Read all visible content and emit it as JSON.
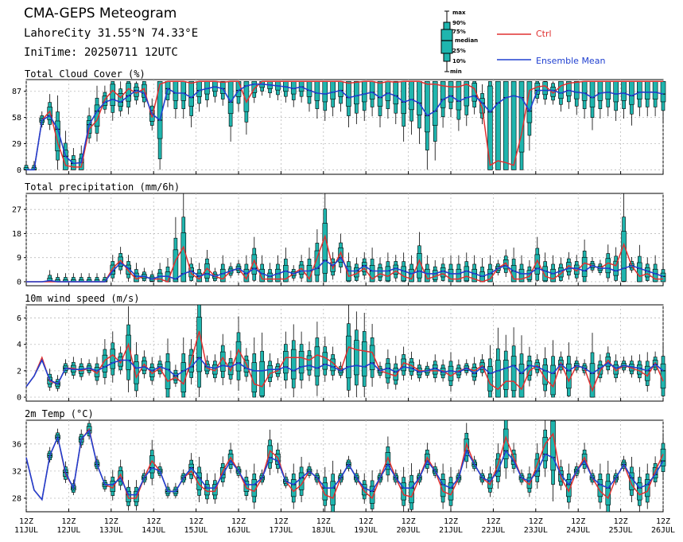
{
  "header": {
    "title": "CMA-GEPS Meteogram",
    "location": "LahoreCity 31.55°N 74.33°E",
    "init_time": "IniTime: 20250711 12UTC"
  },
  "legend": {
    "box_labels": [
      "max",
      "90%",
      "75%",
      "median",
      "25%",
      "10%",
      "min"
    ],
    "ctrl_label": "Ctrl",
    "mean_label": "Ensemble Mean",
    "ctrl_color": "#e03030",
    "mean_color": "#2040d0",
    "box_color": "#1fb5ae"
  },
  "x_axis": {
    "ticks": [
      {
        "top": "12Z",
        "bottom": "11JUL"
      },
      {
        "top": "12Z",
        "bottom": "12JUL"
      },
      {
        "top": "12Z",
        "bottom": "13JUL"
      },
      {
        "top": "12Z",
        "bottom": "14JUL"
      },
      {
        "top": "12Z",
        "bottom": "15JUL"
      },
      {
        "top": "12Z",
        "bottom": "16JUL"
      },
      {
        "top": "12Z",
        "bottom": "17JUL"
      },
      {
        "top": "12Z",
        "bottom": "18JUL"
      },
      {
        "top": "12Z",
        "bottom": "19JUL"
      },
      {
        "top": "12Z",
        "bottom": "20JUL"
      },
      {
        "top": "12Z",
        "bottom": "21JUL"
      },
      {
        "top": "12Z",
        "bottom": "22JUL"
      },
      {
        "top": "12Z",
        "bottom": "23JUL"
      },
      {
        "top": "12Z",
        "bottom": "24JUL"
      },
      {
        "top": "12Z",
        "bottom": "25JUL"
      },
      {
        "top": "12Z",
        "bottom": "26JUL"
      }
    ]
  },
  "chart_data": [
    {
      "type": "box",
      "title": "Total Cloud Cover (%)",
      "ylim": [
        -5,
        100
      ],
      "yticks": [
        0,
        29,
        58,
        87
      ],
      "grid": true,
      "ctrl": [
        0,
        0,
        55,
        65,
        30,
        5,
        3,
        3,
        45,
        55,
        78,
        88,
        80,
        90,
        85,
        90,
        58,
        95,
        98,
        98,
        98,
        96,
        98,
        98,
        98,
        97,
        98,
        98,
        75,
        90,
        98,
        98,
        98,
        98,
        98,
        98,
        98,
        98,
        98,
        98,
        98,
        96,
        97,
        98,
        98,
        96,
        98,
        97,
        98,
        98,
        98,
        95,
        95,
        93,
        92,
        92,
        95,
        90,
        68,
        5,
        10,
        8,
        5,
        40,
        88,
        92,
        93,
        85,
        93,
        96,
        97,
        98,
        98,
        98,
        98,
        98,
        98,
        98,
        98,
        98,
        98,
        98
      ],
      "mean": [
        0,
        0,
        55,
        60,
        45,
        15,
        7,
        8,
        50,
        65,
        75,
        78,
        75,
        82,
        88,
        85,
        62,
        55,
        90,
        85,
        85,
        80,
        88,
        90,
        92,
        90,
        75,
        88,
        93,
        95,
        95,
        94,
        93,
        92,
        90,
        92,
        88,
        85,
        84,
        86,
        88,
        80,
        82,
        84,
        86,
        80,
        85,
        82,
        75,
        78,
        74,
        60,
        65,
        78,
        82,
        76,
        80,
        82,
        74,
        64,
        74,
        80,
        82,
        80,
        65,
        88,
        88,
        88,
        85,
        88,
        86,
        85,
        80,
        85,
        86,
        84,
        85,
        82,
        86,
        86,
        86,
        84
      ]
    },
    {
      "type": "box",
      "title": "Total precipitation (mm/6h)",
      "ylim": [
        -1.5,
        33
      ],
      "yticks": [
        0,
        9,
        18,
        27
      ],
      "grid": true,
      "ctrl": [
        0,
        0,
        0,
        0,
        0,
        0,
        0,
        0,
        0,
        0,
        0,
        5,
        8,
        4,
        1,
        2,
        1,
        1,
        0,
        8,
        13,
        3,
        1,
        5,
        2,
        1,
        4,
        5,
        1,
        8,
        1,
        1,
        1,
        1,
        3,
        5,
        1,
        9,
        17,
        5,
        11,
        2,
        3,
        5,
        1,
        3,
        2,
        4,
        2,
        1,
        8,
        1,
        2,
        3,
        1,
        1,
        2,
        1,
        0,
        1,
        5,
        7,
        1,
        1,
        2,
        8,
        2,
        1,
        3,
        6,
        4,
        7,
        6,
        5,
        7,
        6,
        14,
        6,
        2,
        3,
        1,
        1
      ],
      "mean": [
        0,
        0,
        0,
        0.4,
        0,
        0,
        0,
        0,
        0,
        0,
        0,
        4,
        7,
        5,
        2,
        2,
        1,
        2,
        2,
        1,
        3,
        4,
        2,
        3,
        2,
        3,
        4,
        5,
        3,
        5,
        3,
        2,
        3,
        4,
        3,
        4,
        4,
        5,
        8,
        6,
        9,
        4,
        4,
        6,
        4,
        4,
        4,
        5,
        4,
        3,
        4,
        3,
        3,
        4,
        3,
        3,
        4,
        3,
        2,
        3,
        5,
        6,
        4,
        3,
        3,
        5,
        4,
        3,
        4,
        5,
        5,
        4,
        6,
        5,
        5,
        4,
        5,
        6,
        5,
        4,
        3,
        2
      ]
    },
    {
      "type": "box",
      "title": "10m wind speed (m/s)",
      "ylim": [
        -0.3,
        7
      ],
      "yticks": [
        0,
        2,
        4,
        6
      ],
      "grid": true,
      "ctrl": [
        0.8,
        1.6,
        3.0,
        1.2,
        1.0,
        2.2,
        2.2,
        2.0,
        2.2,
        1.8,
        2.8,
        3.2,
        2.6,
        4.0,
        1.5,
        2.5,
        1.8,
        2.2,
        1.2,
        1.5,
        1.0,
        2.8,
        5.0,
        2.2,
        2.0,
        3.0,
        2.0,
        3.6,
        2.5,
        1.0,
        0.8,
        1.8,
        2.0,
        3.0,
        3.0,
        3.0,
        2.8,
        3.2,
        3.0,
        2.6,
        2.0,
        3.8,
        3.6,
        3.5,
        3.4,
        2.0,
        1.8,
        1.6,
        2.6,
        2.4,
        2.0,
        2.0,
        2.0,
        2.0,
        1.6,
        2.0,
        2.2,
        2.0,
        2.4,
        1.0,
        0.6,
        1.2,
        1.2,
        0.6,
        2.0,
        2.4,
        1.4,
        0.8,
        2.6,
        1.2,
        2.4,
        2.2,
        0.5,
        2.0,
        2.8,
        2.0,
        2.4,
        2.2,
        2.0,
        1.6,
        2.6,
        1.2
      ],
      "mean": [
        0.8,
        1.6,
        2.8,
        1.3,
        1.0,
        2.2,
        2.1,
        2.1,
        2.2,
        2.0,
        2.3,
        2.6,
        2.8,
        2.8,
        2.2,
        2.3,
        2.0,
        2.3,
        2.1,
        1.6,
        2.0,
        2.3,
        3.0,
        2.3,
        2.2,
        2.4,
        2.3,
        2.6,
        2.2,
        2.0,
        2.0,
        2.1,
        2.1,
        2.3,
        2.0,
        2.3,
        2.4,
        2.2,
        2.5,
        2.3,
        2.0,
        2.3,
        2.4,
        2.3,
        2.6,
        2.0,
        2.2,
        1.9,
        2.3,
        2.2,
        1.9,
        2.0,
        2.2,
        1.9,
        2.0,
        1.9,
        2.2,
        1.8,
        2.3,
        1.8,
        2.0,
        2.2,
        2.4,
        1.8,
        2.4,
        2.3,
        2.0,
        1.8,
        2.5,
        2.0,
        2.4,
        2.2,
        1.8,
        2.2,
        2.6,
        2.2,
        2.4,
        2.3,
        2.2,
        2.0,
        2.5,
        2.0
      ]
    },
    {
      "type": "box",
      "title": "2m Temp (°C)",
      "ylim": [
        26,
        39.5
      ],
      "yticks": [
        28,
        32,
        36
      ],
      "grid": true,
      "ctrl": [
        34,
        29.2,
        27.8,
        34.3,
        37,
        31.6,
        29.5,
        36.6,
        38.2,
        33,
        30,
        29.5,
        31.5,
        28,
        28,
        31,
        33.5,
        32,
        29,
        29,
        31,
        32,
        30,
        29,
        29,
        32,
        34,
        32,
        29.5,
        29,
        31,
        35,
        34,
        30.5,
        29,
        30,
        32,
        31,
        28.5,
        28,
        31,
        33,
        31,
        29,
        28,
        31,
        34,
        31,
        28.5,
        28.2,
        31,
        34,
        32,
        29,
        28.5,
        31,
        36,
        33,
        31,
        30,
        33,
        37,
        34,
        31,
        30,
        33,
        36,
        37.5,
        31,
        29,
        32,
        34,
        31,
        29,
        28,
        31,
        33,
        30,
        28.5,
        29,
        32,
        34.5
      ],
      "mean": [
        34,
        29.2,
        27.8,
        34.3,
        37,
        31.8,
        29.5,
        36.7,
        38,
        33,
        30,
        30,
        31,
        28.5,
        28.5,
        31,
        32.5,
        32,
        29,
        29,
        31,
        32.5,
        31,
        29.5,
        29.5,
        31.5,
        33.5,
        32,
        30,
        30,
        31,
        34,
        33.5,
        30.5,
        30,
        31,
        32,
        31,
        29.5,
        29.5,
        31,
        33,
        31,
        29.5,
        29,
        31,
        33,
        31,
        29.5,
        29.5,
        31,
        33.5,
        32,
        30,
        29.5,
        31,
        35,
        33,
        31,
        30.5,
        32,
        35,
        33.5,
        31,
        30.5,
        32,
        34.5,
        34,
        31.5,
        30,
        32,
        33.5,
        31,
        30,
        29.5,
        31,
        33,
        31,
        29.5,
        30,
        31.5,
        33.5
      ]
    }
  ]
}
